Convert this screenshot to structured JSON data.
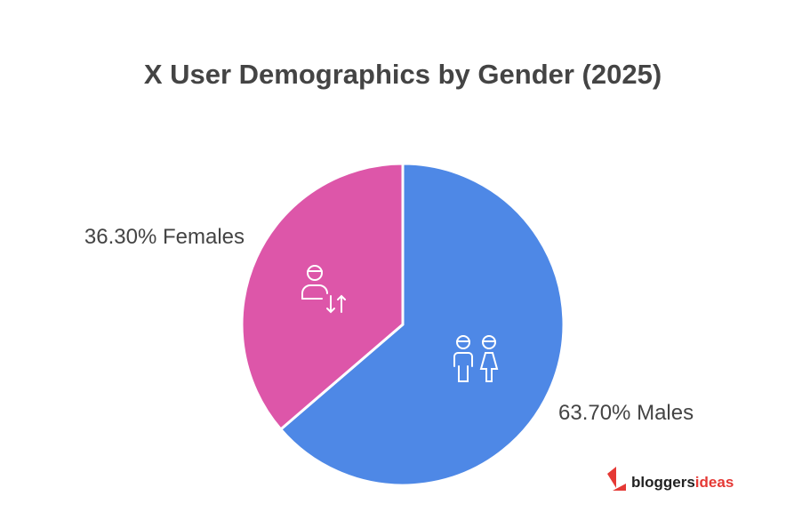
{
  "chart_data": {
    "type": "pie",
    "title": "X User Demographics by Gender (2025)",
    "categories": [
      "Males",
      "Females"
    ],
    "values": [
      63.7,
      36.3
    ],
    "value_labels": [
      "63.70%",
      "36.30%"
    ],
    "colors": [
      "#4e88e6",
      "#dd56a9"
    ],
    "watermark": {
      "text": "bloggers",
      "accent": "ideas"
    }
  }
}
